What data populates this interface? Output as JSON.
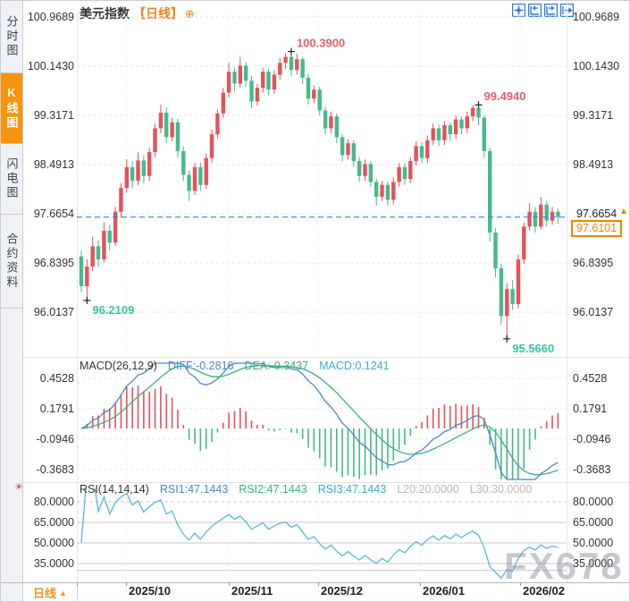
{
  "sidebar": {
    "items": [
      {
        "label": "分时图",
        "active": false
      },
      {
        "label": "K线图",
        "active": true
      },
      {
        "label": "闪电图",
        "active": false
      },
      {
        "label": "合约资料",
        "active": false
      }
    ]
  },
  "header": {
    "title": "美元指数",
    "period_tag": "【日线】",
    "plus_icon": "⊕"
  },
  "price_axis": {
    "labels": [
      "100.9689",
      "100.1430",
      "99.3171",
      "98.4913",
      "97.6654",
      "96.8395",
      "96.0137"
    ]
  },
  "macd_axis": {
    "labels": [
      "0.4528",
      "0.1791",
      "-0.0946",
      "-0.3683"
    ]
  },
  "rsi_axis": {
    "labels": [
      "80.0000",
      "65.0000",
      "50.0000",
      "35.0000"
    ]
  },
  "macd_header": {
    "name": "MACD(26,12,9)",
    "diff": "DIFF:-0.2816",
    "dea": "DEA:-0.3437",
    "macd": "MACD:0.1241"
  },
  "rsi_header": {
    "name": "RSI(14,14,14)",
    "rsi1": "RSI1:47.1443",
    "rsi2": "RSI2:47.1443",
    "rsi3": "RSI3:47.1443",
    "l20": "L20:20.0000",
    "l30": "L30:30.0000"
  },
  "price_line": {
    "axis_value": "97.6654",
    "last_price": "97.6101",
    "arrow": "▲"
  },
  "time_axis": {
    "period_label": "日线",
    "arrow": "▲",
    "labels": [
      "2025/10",
      "2025/11",
      "2025/12",
      "2026/01",
      "2026/02"
    ]
  },
  "watermark": "FX678",
  "sun_icon": "☀",
  "colors": {
    "up": "#e4525c",
    "down": "#45ba8b",
    "annotation_red": "#e85d67",
    "annotation_green": "#35c6a2",
    "accent_orange": "#f08200",
    "toolbar_blue": "#2b7cd3",
    "diff_blue": "#4a87c6",
    "dea_green": "#3eae7e",
    "macd_cyan": "#3fa8c8",
    "rsi_line": "#5ab6d8",
    "dashed_line_blue": "#3d7edb"
  },
  "chart_data": {
    "type": "candlestick",
    "title": "美元指数 日线 (US Dollar Index, daily)",
    "panels": [
      "price-candles",
      "MACD(26,12,9)",
      "RSI(14,14,14)"
    ],
    "y_axis_price": [
      100.9689,
      100.143,
      99.3171,
      98.4913,
      97.6654,
      96.8395,
      96.0137
    ],
    "y_axis_macd": [
      0.4528,
      0.1791,
      -0.0946,
      -0.3683
    ],
    "y_axis_rsi": [
      80,
      65,
      50,
      35
    ],
    "x_tick_labels": [
      "2025/10",
      "2025/11",
      "2025/12",
      "2026/01",
      "2026/02"
    ],
    "last_close": 97.6101,
    "annotations": [
      {
        "text": "100.3900",
        "index": 37,
        "price": 100.39,
        "pos": "top",
        "color": "#e85d67"
      },
      {
        "text": "99.4940",
        "index": 70,
        "price": 99.494,
        "pos": "top",
        "color": "#e85d67"
      },
      {
        "text": "96.2109",
        "index": 1,
        "price": 96.2109,
        "pos": "bottom",
        "color": "#35c6a2"
      },
      {
        "text": "95.5660",
        "index": 75,
        "price": 95.566,
        "pos": "bottom",
        "color": "#35c6a2"
      }
    ],
    "candles": [
      [
        96.95,
        97.05,
        96.35,
        96.45
      ],
      [
        96.45,
        96.9,
        96.211,
        96.78
      ],
      [
        96.78,
        97.28,
        96.7,
        97.12
      ],
      [
        97.12,
        97.22,
        96.78,
        96.9
      ],
      [
        96.9,
        97.52,
        96.85,
        97.38
      ],
      [
        97.38,
        97.48,
        97.05,
        97.18
      ],
      [
        97.18,
        97.78,
        97.12,
        97.7
      ],
      [
        97.7,
        98.18,
        97.6,
        98.1
      ],
      [
        98.1,
        98.58,
        98.02,
        98.45
      ],
      [
        98.45,
        98.55,
        98.1,
        98.22
      ],
      [
        98.22,
        98.7,
        98.15,
        98.56
      ],
      [
        98.56,
        98.65,
        98.18,
        98.3
      ],
      [
        98.3,
        98.78,
        98.22,
        98.7
      ],
      [
        98.7,
        99.18,
        98.62,
        99.1
      ],
      [
        99.1,
        99.5,
        99.02,
        99.36
      ],
      [
        99.36,
        99.45,
        98.85,
        98.95
      ],
      [
        98.95,
        99.28,
        98.88,
        99.2
      ],
      [
        99.2,
        99.26,
        98.62,
        98.72
      ],
      [
        98.72,
        98.8,
        98.22,
        98.32
      ],
      [
        98.32,
        98.4,
        97.88,
        98.05
      ],
      [
        98.05,
        98.52,
        97.98,
        98.45
      ],
      [
        98.45,
        98.52,
        98.05,
        98.15
      ],
      [
        98.15,
        98.68,
        98.08,
        98.6
      ],
      [
        98.6,
        99.08,
        98.52,
        99.0
      ],
      [
        99.0,
        99.42,
        98.92,
        99.35
      ],
      [
        99.35,
        99.78,
        99.28,
        99.7
      ],
      [
        99.7,
        100.2,
        99.62,
        100.05
      ],
      [
        100.05,
        100.12,
        99.72,
        99.85
      ],
      [
        99.85,
        100.3,
        99.78,
        100.15
      ],
      [
        100.15,
        100.22,
        99.8,
        99.9
      ],
      [
        99.9,
        99.98,
        99.45,
        99.55
      ],
      [
        99.55,
        99.85,
        99.48,
        99.78
      ],
      [
        99.78,
        100.12,
        99.7,
        100.05
      ],
      [
        100.05,
        100.1,
        99.65,
        99.75
      ],
      [
        99.75,
        100.08,
        99.68,
        100.0
      ],
      [
        100.0,
        100.28,
        99.92,
        100.2
      ],
      [
        100.2,
        100.36,
        100.1,
        100.3
      ],
      [
        100.3,
        100.39,
        99.98,
        100.08
      ],
      [
        100.08,
        100.35,
        100.0,
        100.26
      ],
      [
        100.26,
        100.3,
        99.85,
        99.95
      ],
      [
        99.95,
        100.02,
        99.5,
        99.6
      ],
      [
        99.6,
        99.82,
        99.52,
        99.75
      ],
      [
        99.75,
        99.8,
        99.32,
        99.4
      ],
      [
        99.4,
        99.46,
        99.0,
        99.1
      ],
      [
        99.1,
        99.38,
        99.02,
        99.3
      ],
      [
        99.3,
        99.35,
        98.85,
        98.95
      ],
      [
        98.95,
        99.0,
        98.55,
        98.65
      ],
      [
        98.65,
        98.92,
        98.58,
        98.85
      ],
      [
        98.85,
        98.9,
        98.45,
        98.55
      ],
      [
        98.55,
        98.62,
        98.2,
        98.3
      ],
      [
        98.3,
        98.58,
        98.22,
        98.5
      ],
      [
        98.5,
        98.55,
        98.12,
        98.2
      ],
      [
        98.2,
        98.26,
        97.8,
        97.95
      ],
      [
        97.95,
        98.22,
        97.88,
        98.15
      ],
      [
        98.15,
        98.2,
        97.8,
        97.9
      ],
      [
        97.9,
        98.28,
        97.82,
        98.2
      ],
      [
        98.2,
        98.52,
        98.12,
        98.45
      ],
      [
        98.45,
        98.52,
        98.15,
        98.25
      ],
      [
        98.25,
        98.62,
        98.18,
        98.55
      ],
      [
        98.55,
        98.88,
        98.48,
        98.8
      ],
      [
        98.8,
        98.86,
        98.52,
        98.6
      ],
      [
        98.6,
        98.98,
        98.52,
        98.9
      ],
      [
        98.9,
        99.18,
        98.82,
        99.1
      ],
      [
        99.1,
        99.16,
        98.8,
        98.9
      ],
      [
        98.9,
        99.22,
        98.82,
        99.15
      ],
      [
        99.15,
        99.2,
        98.9,
        99.0
      ],
      [
        99.0,
        99.32,
        98.92,
        99.25
      ],
      [
        99.25,
        99.3,
        99.0,
        99.1
      ],
      [
        99.1,
        99.38,
        99.02,
        99.3
      ],
      [
        99.3,
        99.49,
        99.22,
        99.44
      ],
      [
        99.44,
        99.494,
        99.15,
        99.28
      ],
      [
        99.28,
        99.32,
        98.6,
        98.72
      ],
      [
        98.72,
        98.78,
        97.2,
        97.35
      ],
      [
        97.35,
        97.42,
        96.6,
        96.75
      ],
      [
        96.75,
        96.82,
        95.8,
        95.95
      ],
      [
        95.95,
        96.5,
        95.566,
        96.4
      ],
      [
        96.4,
        96.55,
        96.05,
        96.15
      ],
      [
        96.15,
        96.98,
        96.08,
        96.9
      ],
      [
        96.9,
        97.52,
        96.82,
        97.45
      ],
      [
        97.45,
        97.85,
        97.38,
        97.7
      ],
      [
        97.7,
        97.78,
        97.35,
        97.45
      ],
      [
        97.45,
        97.95,
        97.4,
        97.82
      ],
      [
        97.82,
        97.88,
        97.45,
        97.55
      ],
      [
        97.55,
        97.78,
        97.48,
        97.7
      ],
      [
        97.7,
        97.75,
        97.5,
        97.6101
      ]
    ]
  }
}
